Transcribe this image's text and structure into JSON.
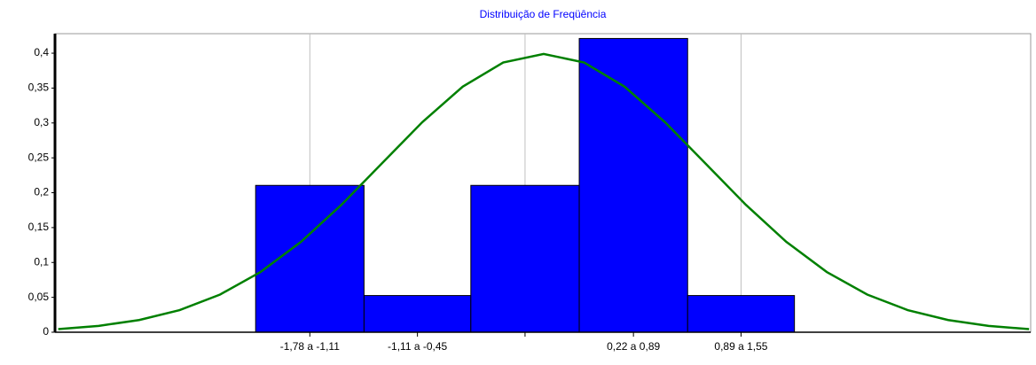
{
  "chart_data": {
    "type": "histogram",
    "title": "Distribuição de Freqüência",
    "bins": [
      -1.78,
      -1.11,
      -0.45,
      0.22,
      0.89,
      1.55
    ],
    "values": [
      0.2105,
      0.0526,
      0.2105,
      0.4211,
      0.0526
    ],
    "categories": [
      "-1,78 a -1,11",
      "-1,11 a -0,45",
      null,
      "0,22 a 0,89",
      "0,89 a 1,55"
    ],
    "color": "#0000ff",
    "curve": {
      "type": "line",
      "color": "#008000",
      "x": [
        -3,
        -2.75,
        -2.5,
        -2.25,
        -2,
        -1.75,
        -1.5,
        -1.25,
        -1,
        -0.75,
        -0.5,
        -0.25,
        0,
        0.25,
        0.5,
        0.75,
        1,
        1.25,
        1.5,
        1.75,
        2,
        2.25,
        2.5,
        2.75,
        3
      ],
      "values": [
        0.0044,
        0.0091,
        0.0175,
        0.0317,
        0.054,
        0.0863,
        0.1295,
        0.1826,
        0.242,
        0.3011,
        0.3521,
        0.3867,
        0.3989,
        0.3867,
        0.3521,
        0.3011,
        0.242,
        0.1826,
        0.1295,
        0.0863,
        0.054,
        0.0317,
        0.0175,
        0.0091,
        0.0044
      ]
    },
    "xlim": [
      -3.02,
      3.01
    ],
    "ylim": [
      0,
      0.428
    ],
    "yticks": [
      0,
      {
        "value": 0.05,
        "label": "0,05"
      },
      {
        "value": 0.1,
        "label": "0,1"
      },
      {
        "value": 0.15,
        "label": "0,15"
      },
      {
        "value": 0.2,
        "label": "0,2"
      },
      {
        "value": 0.25,
        "label": "0,25"
      },
      {
        "value": 0.3,
        "label": "0,3"
      },
      {
        "value": 0.35,
        "label": "0,35"
      },
      {
        "value": 0.4,
        "label": "0,4"
      }
    ],
    "grid": true
  }
}
